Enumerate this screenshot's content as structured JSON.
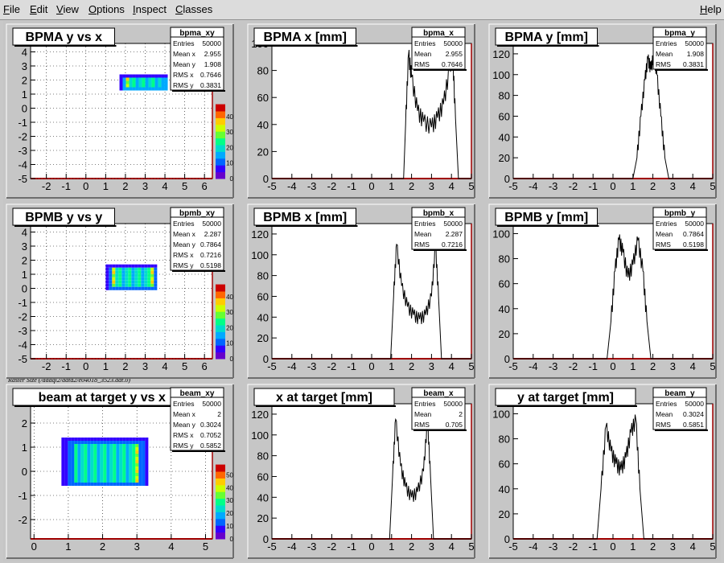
{
  "menu": {
    "file": "File",
    "edit": "Edit",
    "view": "View",
    "options": "Options",
    "inspect": "Inspect",
    "classes": "Classes",
    "help": "Help"
  },
  "caption": "Raster Size (/adaql2/data2/e04018_3523.dat.0)",
  "colors": {
    "frame_bg": "#ffffff",
    "pad_bg": "#c6c6c6",
    "axis_red": "#a00000",
    "hist_line": "#000000",
    "grid": "#000000"
  },
  "panels": [
    {
      "id": "bpma_xy",
      "title": "BPMA y vs x",
      "stats": {
        "name": "bpma_xy",
        "rows": [
          [
            "Entries",
            "50000"
          ],
          [
            "Mean x",
            "2.955"
          ],
          [
            "Mean y",
            "1.908"
          ],
          [
            "RMS x",
            "0.7646"
          ],
          [
            "RMS y",
            "0.3831"
          ]
        ]
      },
      "chart_data": {
        "type": "heatmap",
        "x_ticks": [
          "-2",
          "-1",
          "0",
          "1",
          "2",
          "3",
          "4",
          "5",
          "6"
        ],
        "y_ticks": [
          "-5",
          "-4",
          "-3",
          "-2",
          "-1",
          "0",
          "1",
          "2",
          "3",
          "4"
        ],
        "xlim": [
          -2.8,
          6.4
        ],
        "ylim": [
          -5,
          4.6
        ],
        "blob": {
          "x": [
            1.7,
            4.1
          ],
          "y": [
            1.4,
            2.4
          ]
        },
        "z_ticks": [
          "0",
          "10",
          "20",
          "30",
          "40"
        ]
      }
    },
    {
      "id": "bpma_x",
      "title": "BPMA x [mm]",
      "stats": {
        "name": "bpma_x",
        "rows": [
          [
            "Entries",
            "50000"
          ],
          [
            "Mean",
            "2.955"
          ],
          [
            "RMS",
            "0.7646"
          ]
        ]
      },
      "chart_data": {
        "type": "line",
        "x_ticks": [
          "-5",
          "-4",
          "-3",
          "-2",
          "-1",
          "0",
          "1",
          "2",
          "3",
          "4",
          "5"
        ],
        "y_ticks": [
          "0",
          "20",
          "40",
          "60",
          "80",
          "100"
        ],
        "xlim": [
          -5,
          5
        ],
        "ylim": [
          0,
          100
        ],
        "x": [
          1.6,
          1.7,
          1.85,
          2.0,
          2.3,
          2.6,
          3.0,
          3.3,
          3.6,
          3.9,
          4.05,
          4.2,
          4.35
        ],
        "y": [
          0,
          40,
          92,
          75,
          50,
          42,
          38,
          45,
          55,
          80,
          95,
          45,
          0
        ]
      }
    },
    {
      "id": "bpma_y",
      "title": "BPMA y [mm]",
      "stats": {
        "name": "bpma_y",
        "rows": [
          [
            "Entries",
            "50000"
          ],
          [
            "Mean",
            "1.908"
          ],
          [
            "RMS",
            "0.3831"
          ]
        ]
      },
      "chart_data": {
        "type": "line",
        "x_ticks": [
          "-5",
          "-4",
          "-3",
          "-2",
          "-1",
          "0",
          "1",
          "2",
          "3",
          "4",
          "5"
        ],
        "y_ticks": [
          "0",
          "20",
          "40",
          "60",
          "80",
          "100",
          "120"
        ],
        "xlim": [
          -5,
          5
        ],
        "ylim": [
          0,
          130
        ],
        "x": [
          1.0,
          1.2,
          1.4,
          1.6,
          1.75,
          1.9,
          2.05,
          2.2,
          2.4,
          2.6,
          2.8
        ],
        "y": [
          0,
          20,
          60,
          95,
          115,
          105,
          120,
          100,
          60,
          20,
          0
        ]
      }
    },
    {
      "id": "bpmb_xy",
      "title": "BPMB y vs y",
      "stats": {
        "name": "bpmb_xy",
        "rows": [
          [
            "Entries",
            "50000"
          ],
          [
            "Mean x",
            "2.287"
          ],
          [
            "Mean y",
            "0.7864"
          ],
          [
            "RMS x",
            "0.7216"
          ],
          [
            "RMS y",
            "0.5198"
          ]
        ]
      },
      "chart_data": {
        "type": "heatmap",
        "x_ticks": [
          "-2",
          "-1",
          "0",
          "1",
          "2",
          "3",
          "4",
          "5",
          "6"
        ],
        "y_ticks": [
          "-5",
          "-4",
          "-3",
          "-2",
          "-1",
          "0",
          "1",
          "2",
          "3",
          "4"
        ],
        "xlim": [
          -2.8,
          6.4
        ],
        "ylim": [
          -5,
          4.6
        ],
        "blob": {
          "x": [
            1.0,
            3.6
          ],
          "y": [
            -0.1,
            1.7
          ]
        },
        "z_ticks": [
          "0",
          "10",
          "20",
          "30",
          "40"
        ]
      }
    },
    {
      "id": "bpmb_x",
      "title": "BPMB x [mm]",
      "stats": {
        "name": "bpmb_x",
        "rows": [
          [
            "Entries",
            "50000"
          ],
          [
            "Mean",
            "2.287"
          ],
          [
            "RMS",
            "0.7216"
          ]
        ]
      },
      "chart_data": {
        "type": "line",
        "x_ticks": [
          "-5",
          "-4",
          "-3",
          "-2",
          "-1",
          "0",
          "1",
          "2",
          "3",
          "4",
          "5"
        ],
        "y_ticks": [
          "0",
          "20",
          "40",
          "60",
          "80",
          "100",
          "120"
        ],
        "xlim": [
          -5,
          5
        ],
        "ylim": [
          0,
          130
        ],
        "x": [
          0.95,
          1.1,
          1.25,
          1.5,
          1.8,
          2.1,
          2.4,
          2.7,
          3.0,
          3.2,
          3.35,
          3.5
        ],
        "y": [
          0,
          60,
          110,
          70,
          50,
          42,
          38,
          42,
          60,
          110,
          60,
          0
        ]
      }
    },
    {
      "id": "bpmb_y",
      "title": "BPMB y [mm]",
      "stats": {
        "name": "bpmb_y",
        "rows": [
          [
            "Entries",
            "50000"
          ],
          [
            "Mean",
            "0.7864"
          ],
          [
            "RMS",
            "0.5198"
          ]
        ]
      },
      "chart_data": {
        "type": "line",
        "x_ticks": [
          "-5",
          "-4",
          "-3",
          "-2",
          "-1",
          "0",
          "1",
          "2",
          "3",
          "4",
          "5"
        ],
        "y_ticks": [
          "0",
          "20",
          "40",
          "60",
          "80",
          "100"
        ],
        "xlim": [
          -5,
          5
        ],
        "ylim": [
          0,
          108
        ],
        "x": [
          -0.3,
          -0.1,
          0.1,
          0.3,
          0.5,
          0.75,
          1.0,
          1.25,
          1.5,
          1.7,
          1.9
        ],
        "y": [
          0,
          30,
          70,
          95,
          85,
          65,
          75,
          95,
          70,
          30,
          0
        ]
      }
    },
    {
      "id": "beam_xy",
      "title": "beam at target y vs x",
      "stats": {
        "name": "beam_xy",
        "rows": [
          [
            "Entries",
            "50000"
          ],
          [
            "Mean x",
            "2"
          ],
          [
            "Mean y",
            "0.3024"
          ],
          [
            "RMS x",
            "0.7052"
          ],
          [
            "RMS y",
            "0.5852"
          ]
        ]
      },
      "chart_data": {
        "type": "heatmap",
        "x_ticks": [
          "0",
          "1",
          "2",
          "3",
          "4",
          "5"
        ],
        "y_ticks": [
          "-2",
          "-1",
          "0",
          "1",
          "2"
        ],
        "xlim": [
          -0.1,
          5.2
        ],
        "ylim": [
          -2.8,
          2.8
        ],
        "blob": {
          "x": [
            0.8,
            3.3
          ],
          "y": [
            -0.6,
            1.4
          ]
        },
        "z_ticks": [
          "0",
          "10",
          "20",
          "30",
          "40",
          "50"
        ]
      }
    },
    {
      "id": "beam_x",
      "title": "x at target [mm]",
      "stats": {
        "name": "beam_x",
        "rows": [
          [
            "Entries",
            "50000"
          ],
          [
            "Mean",
            "2"
          ],
          [
            "RMS",
            "0.705"
          ]
        ]
      },
      "chart_data": {
        "type": "line",
        "x_ticks": [
          "-5",
          "-4",
          "-3",
          "-2",
          "-1",
          "0",
          "1",
          "2",
          "3",
          "4",
          "5"
        ],
        "y_ticks": [
          "0",
          "20",
          "40",
          "60",
          "80",
          "100",
          "120"
        ],
        "xlim": [
          -5,
          5
        ],
        "ylim": [
          0,
          130
        ],
        "x": [
          0.9,
          1.05,
          1.2,
          1.45,
          1.7,
          2.0,
          2.3,
          2.6,
          2.8,
          2.95,
          3.1
        ],
        "y": [
          0,
          60,
          115,
          70,
          50,
          40,
          45,
          65,
          115,
          60,
          0
        ]
      }
    },
    {
      "id": "beam_y",
      "title": "y at target [mm]",
      "stats": {
        "name": "beam_y",
        "rows": [
          [
            "Entries",
            "50000"
          ],
          [
            "Mean",
            "0.3024"
          ],
          [
            "RMS",
            "0.5851"
          ]
        ]
      },
      "chart_data": {
        "type": "line",
        "x_ticks": [
          "-5",
          "-4",
          "-3",
          "-2",
          "-1",
          "0",
          "1",
          "2",
          "3",
          "4",
          "5"
        ],
        "y_ticks": [
          "0",
          "20",
          "40",
          "60",
          "80",
          "100"
        ],
        "xlim": [
          -5,
          5
        ],
        "ylim": [
          0,
          108
        ],
        "x": [
          -0.8,
          -0.6,
          -0.35,
          -0.1,
          0.15,
          0.4,
          0.65,
          0.9,
          1.15,
          1.35,
          1.55
        ],
        "y": [
          0,
          40,
          90,
          70,
          60,
          55,
          65,
          85,
          95,
          40,
          0
        ]
      }
    }
  ]
}
